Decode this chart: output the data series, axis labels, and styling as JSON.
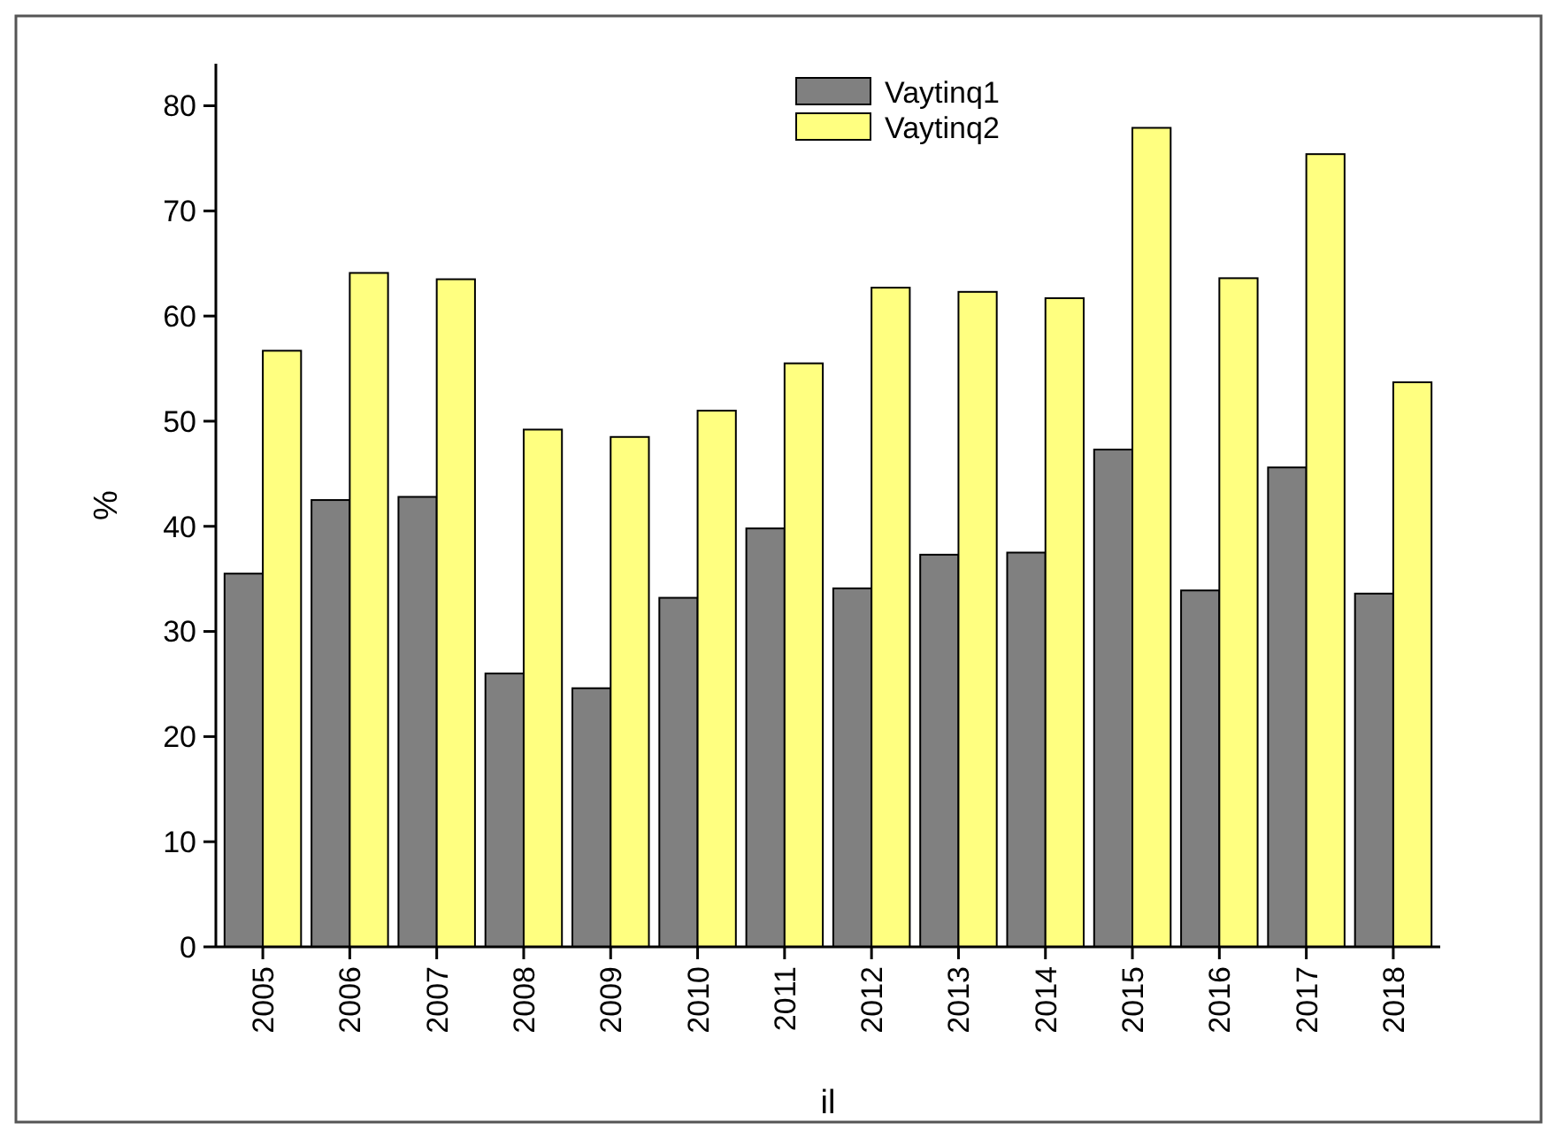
{
  "chart_data": {
    "type": "bar",
    "xlabel": "il",
    "ylabel": "%",
    "categories": [
      "2005",
      "2006",
      "2007",
      "2008",
      "2009",
      "2010",
      "2011",
      "2012",
      "2013",
      "2014",
      "2015",
      "2016",
      "2017",
      "2018"
    ],
    "series": [
      {
        "name": "Vaytinq1",
        "color": "#808080",
        "values": [
          35.5,
          42.5,
          42.8,
          26,
          24.6,
          33.2,
          39.8,
          34.1,
          37.3,
          37.5,
          47.3,
          33.9,
          45.6,
          33.6
        ]
      },
      {
        "name": "Vaytinq2",
        "color": "#ffff80",
        "values": [
          56.7,
          64.1,
          63.5,
          49.2,
          48.5,
          51,
          55.5,
          62.7,
          62.3,
          61.7,
          77.9,
          63.6,
          75.4,
          53.7
        ]
      }
    ],
    "ylim": [
      0,
      84
    ],
    "yticks": [
      0,
      10,
      20,
      30,
      40,
      50,
      60,
      70,
      80
    ],
    "grid": false,
    "legend": "top"
  }
}
